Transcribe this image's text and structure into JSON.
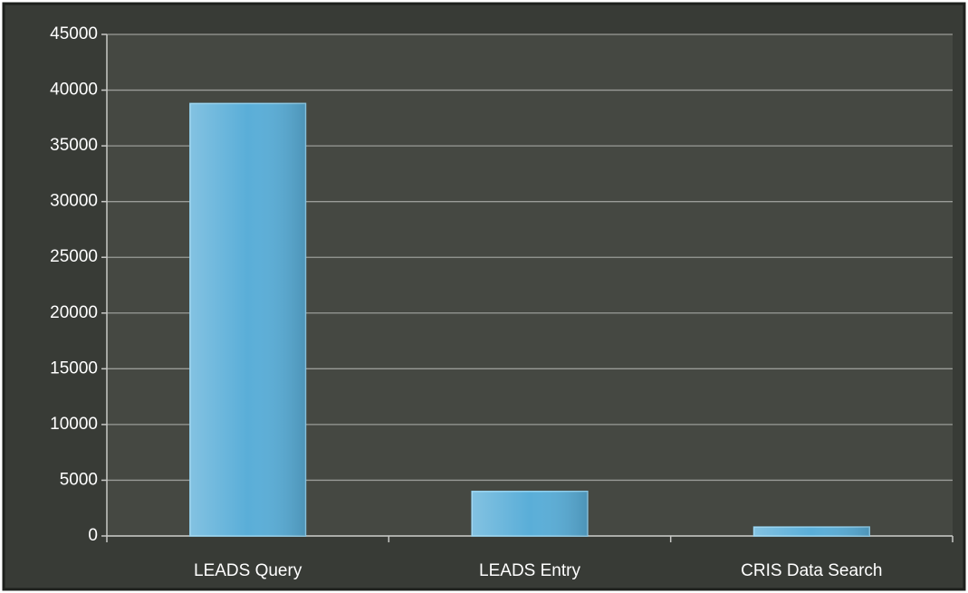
{
  "chart_data": {
    "type": "bar",
    "categories": [
      "LEADS Query",
      "LEADS Entry",
      "CRIS Data Search"
    ],
    "values": [
      38800,
      4000,
      800
    ],
    "color": "#5aaed8",
    "ylim": [
      0,
      45000
    ],
    "yticks": [
      0,
      5000,
      10000,
      15000,
      20000,
      25000,
      30000,
      35000,
      40000,
      45000
    ],
    "grid": true
  }
}
